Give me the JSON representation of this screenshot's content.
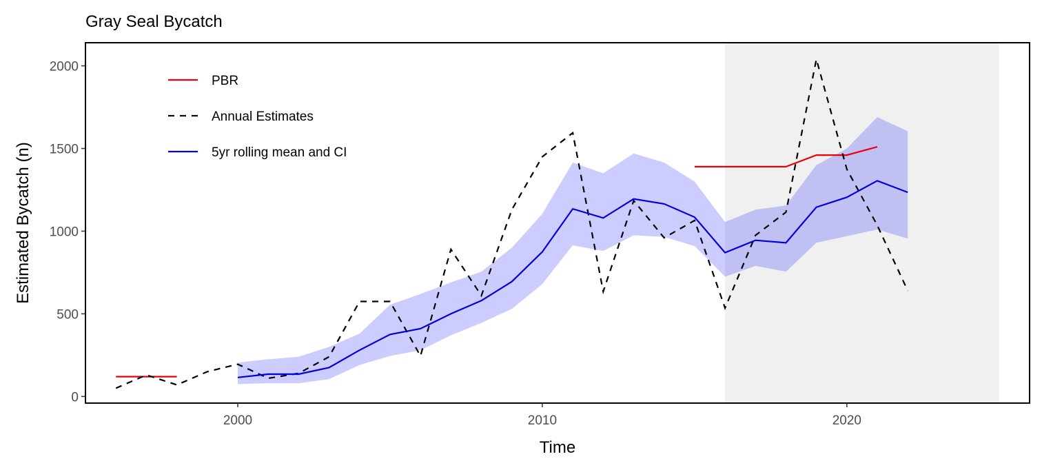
{
  "chart_data": {
    "type": "line",
    "title": "Gray Seal Bycatch",
    "xlabel": "Time",
    "ylabel": "Estimated Bycatch (n)",
    "xlim": [
      1995,
      2026
    ],
    "ylim": [
      -40,
      2140
    ],
    "x_ticks": [
      2000,
      2010,
      2020
    ],
    "y_ticks": [
      0,
      500,
      1000,
      1500,
      2000
    ],
    "grid": false,
    "legend_position": "top-left inside",
    "shaded_region": {
      "x_start": 2016,
      "x_end": 2025,
      "color": "#f0f0f0"
    },
    "colors": {
      "pbr": "#e8000b",
      "annual": "#000000",
      "rolling": "#0000e0",
      "ci": "#c8c8f8"
    },
    "series": [
      {
        "name": "PBR",
        "style": "solid",
        "segments": [
          {
            "x": [
              1996,
              1998
            ],
            "y": [
              120,
              120
            ]
          },
          {
            "x": [
              2015,
              2016,
              2017,
              2018,
              2019,
              2020,
              2021
            ],
            "y": [
              1390,
              1390,
              1390,
              1390,
              1460,
              1460,
              1510
            ]
          }
        ]
      },
      {
        "name": "Annual Estimates",
        "style": "dashed",
        "x": [
          1996,
          1997,
          1998,
          1999,
          2000,
          2001,
          2002,
          2003,
          2004,
          2005,
          2006,
          2007,
          2008,
          2009,
          2010,
          2011,
          2012,
          2013,
          2014,
          2015,
          2016,
          2017,
          2018,
          2019,
          2020,
          2021,
          2022
        ],
        "y": [
          50,
          130,
          70,
          150,
          195,
          110,
          140,
          240,
          575,
          575,
          245,
          890,
          610,
          1130,
          1450,
          1595,
          635,
          1185,
          960,
          1065,
          535,
          975,
          1115,
          2040,
          1375,
          1035,
          640
        ]
      },
      {
        "name": "5yr rolling mean and CI",
        "style": "solid",
        "x": [
          2000,
          2001,
          2002,
          2003,
          2004,
          2005,
          2006,
          2007,
          2008,
          2009,
          2010,
          2011,
          2012,
          2013,
          2014,
          2015,
          2016,
          2017,
          2018,
          2019,
          2020,
          2021,
          2022
        ],
        "y": [
          115,
          135,
          135,
          175,
          280,
          375,
          410,
          500,
          580,
          695,
          875,
          1135,
          1080,
          1195,
          1165,
          1085,
          870,
          945,
          930,
          1145,
          1205,
          1305,
          1235
        ],
        "ci_low": [
          75,
          80,
          80,
          105,
          190,
          245,
          280,
          370,
          445,
          530,
          680,
          915,
          880,
          975,
          965,
          910,
          725,
          790,
          755,
          930,
          970,
          1010,
          955
        ],
        "ci_high": [
          205,
          225,
          240,
          300,
          380,
          555,
          620,
          690,
          755,
          900,
          1105,
          1415,
          1350,
          1470,
          1415,
          1300,
          1055,
          1130,
          1155,
          1400,
          1500,
          1690,
          1605
        ]
      }
    ]
  }
}
